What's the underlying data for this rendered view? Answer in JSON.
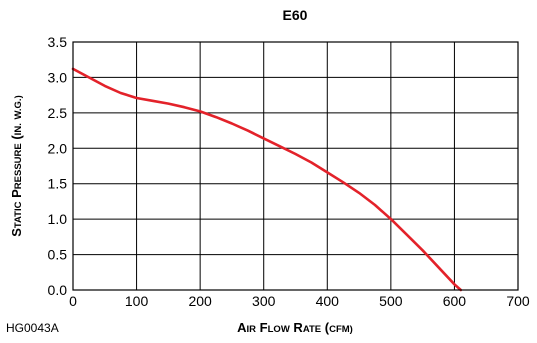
{
  "chart_data": {
    "type": "line",
    "title": "E60",
    "xlabel": "Air Flow Rate (cfm)",
    "ylabel": "Static Pressure (in. w.g.)",
    "xlim": [
      0,
      700
    ],
    "ylim": [
      0,
      3.5
    ],
    "x_ticks": [
      "0",
      "100",
      "200",
      "300",
      "400",
      "500",
      "600",
      "700"
    ],
    "y_ticks": [
      "0.0",
      "0.5",
      "1.0",
      "1.5",
      "2.0",
      "2.5",
      "3.0",
      "3.5"
    ],
    "grid": true,
    "series": [
      {
        "color": "#e3222a",
        "x": [
          0,
          25,
          50,
          75,
          100,
          125,
          150,
          175,
          200,
          225,
          250,
          275,
          300,
          325,
          350,
          375,
          400,
          425,
          450,
          475,
          500,
          525,
          550,
          575,
          600,
          610
        ],
        "y": [
          3.12,
          3.0,
          2.88,
          2.78,
          2.71,
          2.67,
          2.63,
          2.58,
          2.52,
          2.44,
          2.35,
          2.25,
          2.14,
          2.03,
          1.92,
          1.8,
          1.66,
          1.52,
          1.37,
          1.2,
          1.0,
          0.78,
          0.56,
          0.32,
          0.08,
          0.0
        ]
      }
    ]
  },
  "figure_code": "HG0043A"
}
